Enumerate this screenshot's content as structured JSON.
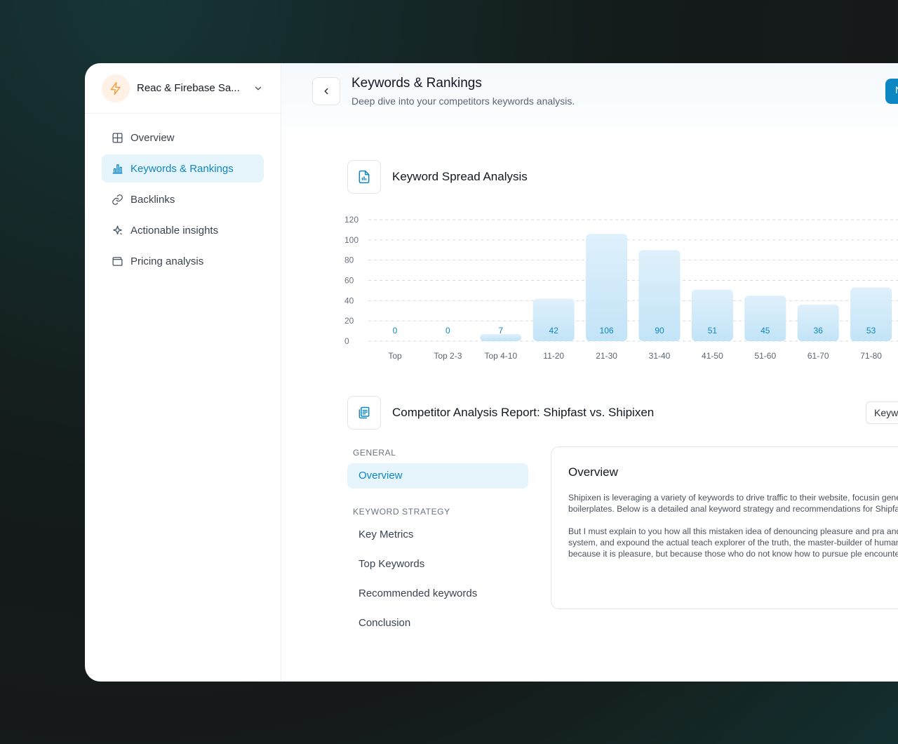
{
  "workspace": {
    "name": "Reac & Firebase Sa...",
    "logo_icon": "lightning-icon",
    "accent": "#f59e3b"
  },
  "sidebar": {
    "items": [
      {
        "label": "Overview",
        "icon": "grid-icon",
        "active": false
      },
      {
        "label": "Keywords & Rankings",
        "icon": "bar-chart-icon",
        "active": true
      },
      {
        "label": "Backlinks",
        "icon": "link-icon",
        "active": false
      },
      {
        "label": "Actionable insights",
        "icon": "sparkle-icon",
        "active": false
      },
      {
        "label": "Pricing analysis",
        "icon": "wallet-icon",
        "active": false
      }
    ]
  },
  "header": {
    "title": "Keywords & Rankings",
    "subtitle": "Deep dive into your competitors keywords analysis.",
    "primary_button": "N"
  },
  "spread_section": {
    "title": "Keyword Spread Analysis",
    "icon": "report-chart-icon"
  },
  "chart_data": {
    "type": "bar",
    "categories": [
      "Top",
      "Top 2-3",
      "Top 4-10",
      "11-20",
      "21-30",
      "31-40",
      "41-50",
      "51-60",
      "61-70",
      "71-80"
    ],
    "values": [
      0,
      0,
      7,
      42,
      106,
      90,
      51,
      45,
      36,
      53
    ],
    "yticks": [
      0,
      20,
      40,
      60,
      80,
      100,
      120
    ],
    "ylim": [
      0,
      120
    ],
    "grid": true,
    "bar_color": "#cde9f8",
    "label_color": "#0f86c2"
  },
  "report": {
    "title": "Competitor Analysis Report: Shipfast vs. Shipixen",
    "icon": "documents-icon",
    "select_value": "Keyw",
    "toc": {
      "general_heading": "GENERAL",
      "general_items": [
        {
          "label": "Overview",
          "active": true
        }
      ],
      "strategy_heading": "KEYWORD STRATEGY",
      "strategy_items": [
        {
          "label": "Key Metrics"
        },
        {
          "label": "Top Keywords"
        },
        {
          "label": "Recommended keywords"
        },
        {
          "label": "Conclusion"
        }
      ]
    },
    "card": {
      "title": "Overview",
      "para1": "Shipixen is leveraging a variety of keywords to drive traffic to their website, focusin generation, Shade UI components, and Next.js boilerplates. Below is a detailed anal keyword strategy and recommendations for Shipfast to compete effectively.",
      "para2": "But I must explain to you how all this mistaken idea of denouncing pleasure and pra and I will give you a complete account of the system, and expound the actual teach explorer of the truth, the master-builder of human happiness. No one rejects, dislike itself, because it is pleasure, but because those who do not know how to pursue ple encounter"
    }
  }
}
